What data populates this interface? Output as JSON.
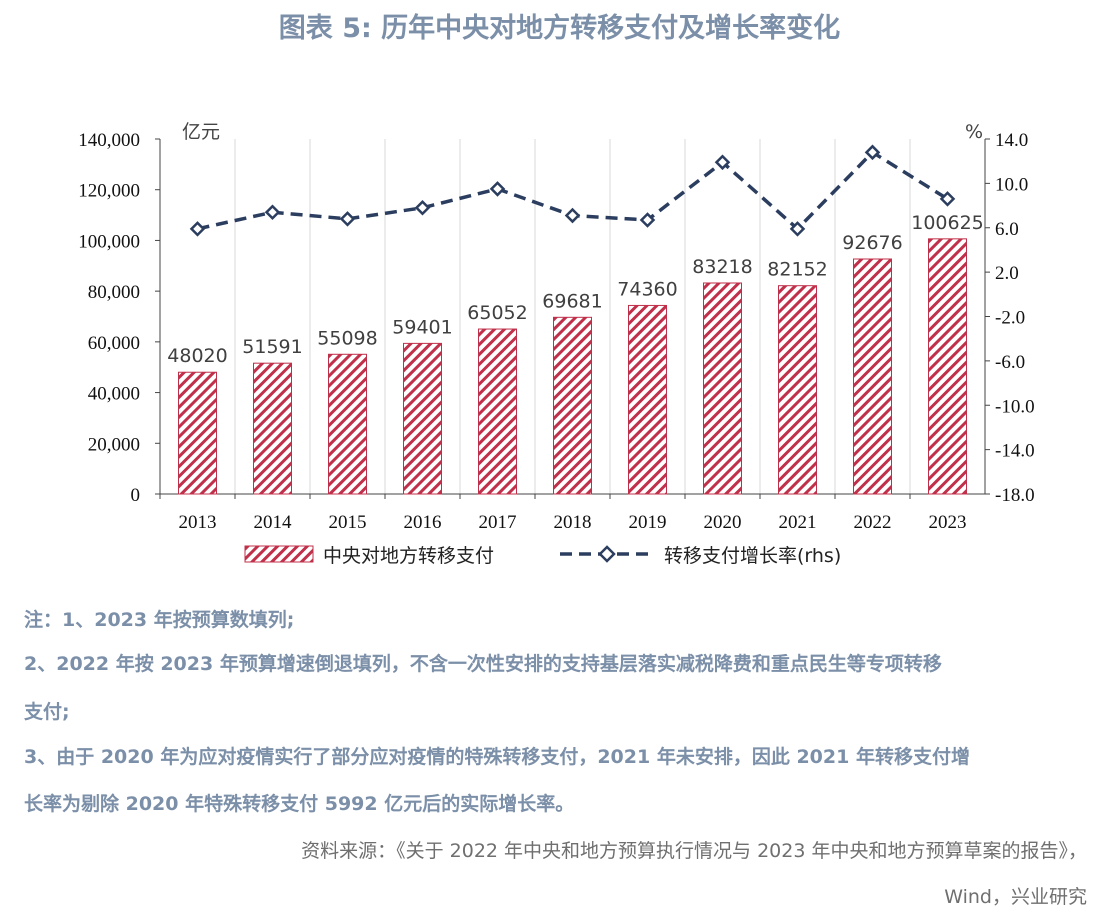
{
  "title": "图表 5:  历年中央对地方转移支付及增长率变化",
  "chart_data": {
    "type": "bar+line",
    "categories": [
      "2013",
      "2014",
      "2015",
      "2016",
      "2017",
      "2018",
      "2019",
      "2020",
      "2021",
      "2022",
      "2023"
    ],
    "bar_series": {
      "name": "中央对地方转移支付",
      "values": [
        48020,
        51591,
        55098,
        59401,
        65052,
        69681,
        74360,
        83218,
        82152,
        92676,
        100625
      ],
      "color": "#c0304a"
    },
    "line_series": {
      "name": "转移支付增长率(rhs)",
      "values": [
        5.9,
        7.4,
        6.8,
        7.8,
        9.5,
        7.1,
        6.7,
        11.9,
        5.9,
        12.8,
        8.6
      ],
      "color": "#2c3e5f"
    },
    "y_left": {
      "unit": "亿元",
      "min": 0,
      "max": 140000,
      "ticks": [
        "0",
        "20,000",
        "40,000",
        "60,000",
        "80,000",
        "100,000",
        "120,000",
        "140,000"
      ]
    },
    "y_right": {
      "unit": "%",
      "min": -18.0,
      "max": 14.0,
      "ticks": [
        "-18.0",
        "-14.0",
        "-10.0",
        "-6.0",
        "-2.0",
        "2.0",
        "6.0",
        "10.0",
        "14.0"
      ]
    },
    "grid": "vertical",
    "legend_position": "bottom"
  },
  "notes": [
    "注：1、2023 年按预算数填列;",
    "2、2022 年按 2023 年预算增速倒退填列，不含一次性安排的支持基层落实减税降费和重点民生等专项转移",
    "支付;",
    "3、由于 2020 年为应对疫情实行了部分应对疫情的特殊转移支付，2021 年未安排，因此 2021 年转移支付增",
    "长率为剔除 2020 年特殊转移支付 5992 亿元后的实际增长率。"
  ],
  "source_line1": "资料来源：《关于 2022 年中央和地方预算执行情况与 2023 年中央和地方预算草案的报告》，",
  "source_line2": "Wind，兴业研究"
}
